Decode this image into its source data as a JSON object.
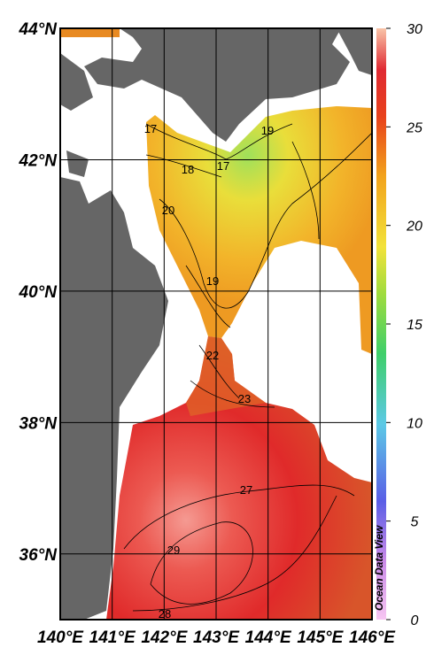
{
  "map": {
    "lat_range": [
      35,
      44
    ],
    "lon_range": [
      140,
      146
    ],
    "lat_ticks": [
      {
        "value": 44,
        "label": "44°N"
      },
      {
        "value": 42,
        "label": "42°N"
      },
      {
        "value": 40,
        "label": "40°N"
      },
      {
        "value": 38,
        "label": "38°N"
      },
      {
        "value": 36,
        "label": "36°N"
      }
    ],
    "lon_ticks": [
      {
        "value": 140,
        "label": "140°E"
      },
      {
        "value": 141,
        "label": "141°E"
      },
      {
        "value": 142,
        "label": "142°E"
      },
      {
        "value": 143,
        "label": "143°E"
      },
      {
        "value": 144,
        "label": "144°E"
      },
      {
        "value": 145,
        "label": "145°E"
      },
      {
        "value": 146,
        "label": "146°E"
      }
    ],
    "colorbar": {
      "range": [
        0,
        30
      ],
      "ticks": [
        0,
        5,
        10,
        15,
        20,
        25,
        30
      ]
    },
    "contour_labels": [
      17,
      18,
      17,
      19,
      20,
      19,
      22,
      23,
      27,
      29,
      28
    ],
    "credit": "Ocean Data View"
  }
}
